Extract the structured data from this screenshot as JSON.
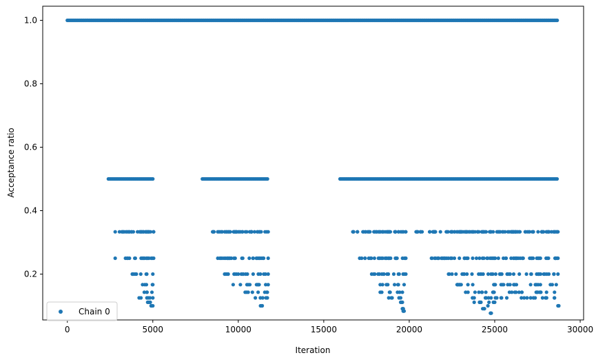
{
  "chart_data": {
    "type": "scatter",
    "xlabel": "Iteration",
    "ylabel": "Acceptance ratio",
    "xlim": [
      -1440,
      30200
    ],
    "ylim": [
      0.0555,
      1.0445
    ],
    "xticks": [
      0,
      5000,
      10000,
      15000,
      20000,
      25000,
      30000
    ],
    "xtick_labels": [
      "0",
      "5000",
      "10000",
      "15000",
      "20000",
      "25000",
      "30000"
    ],
    "yticks": [
      0.2,
      0.4,
      0.6,
      0.8,
      1.0
    ],
    "ytick_labels": [
      "0.2",
      "0.4",
      "0.6",
      "0.8",
      "1.0"
    ],
    "grid": false,
    "legend_position": "lower-left",
    "marker_color": "#1f77b4",
    "series": [
      {
        "name": "Chain 0",
        "marker": "circle",
        "bands": [
          {
            "y": 1.0,
            "x_ranges": [
              [
                0,
                28700
              ]
            ]
          },
          {
            "y": 0.5,
            "x_ranges": [
              [
                2400,
                5050
              ],
              [
                7900,
                11750
              ],
              [
                15950,
                28700
              ]
            ]
          },
          {
            "y": 0.3333,
            "x_ranges": [
              [
                2800,
                5050
              ],
              [
                8500,
                11750
              ],
              [
                16700,
                19800
              ],
              [
                20400,
                28700
              ]
            ]
          },
          {
            "y": 0.25,
            "x_ranges": [
              [
                3500,
                5050
              ],
              [
                8800,
                11750
              ],
              [
                17100,
                19800
              ],
              [
                21300,
                28700
              ]
            ]
          },
          {
            "y": 0.2,
            "x_ranges": [
              [
                3800,
                5000
              ],
              [
                9200,
                11750
              ],
              [
                17800,
                19800
              ],
              [
                22300,
                28700
              ]
            ]
          },
          {
            "y": 0.1667,
            "x_ranges": [
              [
                4400,
                5000
              ],
              [
                9700,
                11750
              ],
              [
                18300,
                19700
              ],
              [
                22800,
                28600
              ]
            ]
          },
          {
            "y": 0.1429,
            "x_ranges": [
              [
                4500,
                4950
              ],
              [
                10400,
                11700
              ],
              [
                18300,
                19600
              ],
              [
                23300,
                28500
              ]
            ]
          },
          {
            "y": 0.125,
            "x_ranges": [
              [
                4200,
                5000
              ],
              [
                11000,
                11700
              ],
              [
                18800,
                19500
              ],
              [
                23700,
                28500
              ]
            ]
          },
          {
            "y": 0.1111,
            "x_ranges": [
              [
                4700,
                4850
              ],
              [
                19500,
                19600
              ],
              [
                23800,
                25000
              ]
            ]
          },
          {
            "y": 0.1,
            "x_ranges": [
              [
                4900,
                5000
              ],
              [
                11300,
                11400
              ],
              [
                28700,
                28750
              ]
            ]
          },
          {
            "y": 0.0909,
            "x_ranges": [
              [
                19600,
                19650
              ],
              [
                24300,
                24400
              ]
            ]
          },
          {
            "y": 0.0833,
            "x_ranges": [
              [
                19650,
                19700
              ]
            ]
          },
          {
            "y": 0.0769,
            "x_ranges": [
              [
                24750,
                24800
              ]
            ]
          }
        ],
        "isolated_points": [
          [
            2800,
            0.25
          ],
          [
            3400,
            0.25
          ],
          [
            26000,
            0.1429
          ],
          [
            24600,
            0.1
          ],
          [
            20500,
            0.3333
          ]
        ]
      }
    ]
  }
}
